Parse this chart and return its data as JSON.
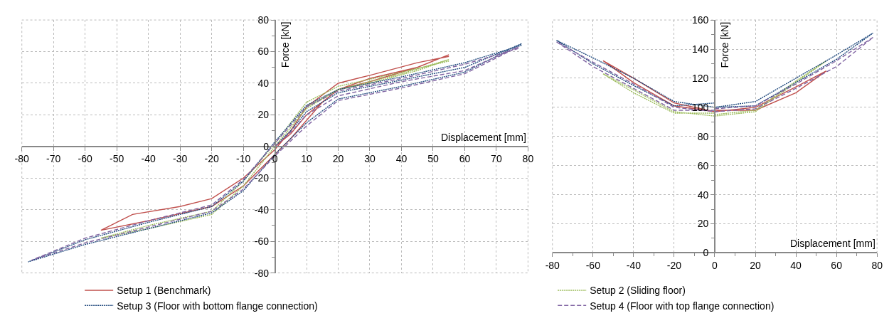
{
  "chart_data": [
    {
      "type": "line",
      "xlabel": "Displacement [mm]",
      "ylabel": "Force [kN]",
      "xlim": [
        -80,
        80
      ],
      "xticks": [
        -80,
        -70,
        -60,
        -50,
        -40,
        -30,
        -20,
        -10,
        0,
        10,
        20,
        30,
        40,
        50,
        60,
        70,
        80
      ],
      "ylim": [
        -80,
        80
      ],
      "yticks": [
        -80,
        -60,
        -40,
        -20,
        0,
        20,
        40,
        60,
        80
      ],
      "grid": true,
      "legend": "bottom",
      "marker": "none",
      "series": [
        {
          "name": "Setup 1 (Benchmark)",
          "color": "#c0504d",
          "line_style": "solid",
          "x": [
            0,
            5,
            10,
            20,
            30,
            45,
            55,
            45,
            30,
            20,
            15,
            5,
            0,
            -10,
            -20,
            -40,
            -55,
            -45,
            -30,
            -20,
            -10,
            0,
            5,
            10,
            20,
            30,
            45,
            55
          ],
          "values": [
            0,
            8,
            20,
            36,
            41,
            50,
            58,
            50,
            43,
            36,
            28,
            5,
            -5,
            -25,
            -38,
            -47,
            -53,
            -43,
            -38,
            -33,
            -20,
            -2,
            10,
            25,
            40,
            45,
            53,
            57
          ]
        },
        {
          "name": "Setup 2 (Sliding floor)",
          "color": "#9bbb59",
          "line_style": "dotted",
          "x": [
            0,
            5,
            10,
            20,
            30,
            45,
            55,
            40,
            20,
            10,
            0,
            -10,
            -20,
            -40,
            -55,
            -40,
            -20,
            -10,
            0,
            10,
            20,
            40,
            55
          ],
          "values": [
            0,
            12,
            25,
            36,
            40,
            48,
            55,
            46,
            36,
            24,
            0,
            -25,
            -43,
            -52,
            -58,
            -50,
            -41,
            -22,
            2,
            28,
            38,
            47,
            54
          ]
        },
        {
          "name": "Setup 3 (Floor with bottom flange connection)",
          "color": "#1f497d",
          "line_style": "dotted",
          "x": [
            0,
            5,
            10,
            20,
            40,
            60,
            78,
            60,
            40,
            20,
            10,
            0,
            -10,
            -20,
            -40,
            -60,
            -78,
            -60,
            -40,
            -20,
            -10,
            0,
            10,
            20,
            40,
            60,
            78
          ],
          "values": [
            0,
            10,
            22,
            34,
            42,
            50,
            65,
            47,
            38,
            30,
            15,
            -5,
            -28,
            -42,
            -52,
            -62,
            -73,
            -59,
            -48,
            -38,
            -22,
            3,
            26,
            36,
            44,
            53,
            64
          ]
        },
        {
          "name": "Setup 4 (Floor with top flange connection)",
          "color": "#8064a2",
          "line_style": "dashed",
          "x": [
            0,
            5,
            10,
            20,
            40,
            60,
            77,
            60,
            40,
            20,
            10,
            0,
            -10,
            -20,
            -40,
            -60,
            -77,
            -60,
            -40,
            -20,
            -10,
            0,
            10,
            20,
            40,
            60,
            77
          ],
          "values": [
            0,
            9,
            20,
            32,
            41,
            48,
            63,
            46,
            37,
            29,
            13,
            -6,
            -27,
            -41,
            -51,
            -61,
            -72,
            -58,
            -47,
            -37,
            -21,
            2,
            25,
            35,
            43,
            52,
            62
          ]
        }
      ]
    },
    {
      "type": "line",
      "xlabel": "Displacement [mm]",
      "ylabel": "Force [kN]",
      "xlim": [
        -80,
        80
      ],
      "xticks": [
        -80,
        -60,
        -40,
        -20,
        0,
        20,
        40,
        60,
        80
      ],
      "ylim": [
        0,
        160
      ],
      "yticks": [
        0,
        20,
        40,
        60,
        80,
        100,
        120,
        140,
        160
      ],
      "grid": true,
      "legend": "bottom",
      "marker": "none",
      "series": [
        {
          "name": "Setup 1 (Benchmark)",
          "color": "#c0504d",
          "line_style": "solid",
          "x": [
            0,
            20,
            40,
            55,
            40,
            20,
            0,
            -20,
            -40,
            -55,
            -40,
            -20,
            0
          ],
          "values": [
            98,
            98,
            110,
            125,
            114,
            100,
            97,
            103,
            120,
            132,
            117,
            101,
            97
          ]
        },
        {
          "name": "Setup 2 (Sliding floor)",
          "color": "#9bbb59",
          "line_style": "dotted",
          "x": [
            0,
            20,
            40,
            55,
            40,
            20,
            0,
            -20,
            -40,
            -55,
            -40,
            -20,
            0
          ],
          "values": [
            95,
            98,
            118,
            132,
            117,
            97,
            94,
            97,
            112,
            123,
            110,
            96,
            96
          ]
        },
        {
          "name": "Setup 3 (Floor with bottom flange connection)",
          "color": "#1f497d",
          "line_style": "dotted",
          "x": [
            0,
            0,
            20,
            40,
            60,
            78,
            60,
            40,
            20,
            0,
            -20,
            -40,
            -60,
            -78,
            -60,
            -40,
            -20,
            0
          ],
          "values": [
            0,
            100,
            104,
            120,
            136,
            151,
            133,
            117,
            101,
            100,
            104,
            120,
            134,
            146,
            130,
            115,
            101,
            103
          ]
        },
        {
          "name": "Setup 4 (Floor with top flange connection)",
          "color": "#8064a2",
          "line_style": "dashed",
          "x": [
            0,
            20,
            40,
            60,
            78,
            60,
            40,
            20,
            0,
            -20,
            -40,
            -60,
            -78,
            -60,
            -40,
            -20,
            0
          ],
          "values": [
            99,
            101,
            116,
            132,
            148,
            128,
            113,
            99,
            97,
            100,
            116,
            131,
            145,
            128,
            113,
            98,
            98
          ]
        }
      ]
    }
  ]
}
